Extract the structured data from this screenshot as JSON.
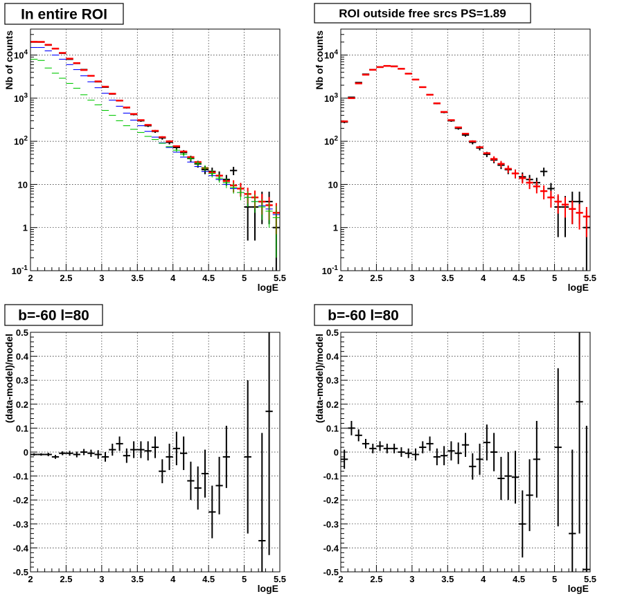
{
  "colors": {
    "data": "#000000",
    "total_model": "#ff0000",
    "blue_model": "#0000ff",
    "green_model": "#00c800"
  },
  "panels": [
    {
      "title": "In entire ROI",
      "xlabel": "logE",
      "ylabel": "Nb of counts"
    },
    {
      "title": "ROI outside free srcs PS=1.89",
      "xlabel": "logE",
      "ylabel": "Nb of counts"
    },
    {
      "title": "b=-60 l=80",
      "xlabel": "logE",
      "ylabel": "(data-model)/model"
    },
    {
      "title": "b=-60 l=80",
      "xlabel": "logE",
      "ylabel": "(data-model)/model"
    }
  ],
  "chart_data": [
    {
      "type": "scatter",
      "title": "In entire ROI",
      "xlabel": "logE",
      "ylabel": "Nb of counts",
      "xlim": [
        2,
        5.5
      ],
      "ylim": [
        0.1,
        40000
      ],
      "yscale": "log",
      "grid": true,
      "x_tick_labels": [
        "2",
        "2.5",
        "3",
        "3.5",
        "4",
        "4.5",
        "5",
        "5.5"
      ],
      "y_tick_labels": [
        "10^-1",
        "1",
        "10",
        "10^2",
        "10^3",
        "10^4"
      ],
      "bin_width": 0.1,
      "x": [
        2.05,
        2.15,
        2.25,
        2.35,
        2.45,
        2.55,
        2.65,
        2.75,
        2.85,
        2.95,
        3.05,
        3.15,
        3.25,
        3.35,
        3.45,
        3.55,
        3.65,
        3.75,
        3.85,
        3.95,
        4.05,
        4.15,
        4.25,
        4.35,
        4.45,
        4.55,
        4.65,
        4.75,
        4.85,
        4.95,
        5.05,
        5.15,
        5.25,
        5.35,
        5.45
      ],
      "series": [
        {
          "role": "data",
          "color": "#000000",
          "values": [
            20000,
            20000,
            17000,
            14000,
            11000,
            8000,
            6400,
            4600,
            3300,
            2400,
            1800,
            1250,
            870,
            600,
            420,
            300,
            230,
            170,
            120,
            95,
            72,
            55,
            40,
            30,
            22,
            20,
            16,
            13,
            21,
            8,
            3,
            3,
            4,
            4,
            1
          ],
          "err_low": [
            141,
            141,
            130,
            118,
            105,
            89,
            80,
            68,
            57,
            49,
            42,
            35,
            29,
            24,
            20,
            17,
            15,
            13,
            11,
            10,
            8.5,
            7.4,
            6.3,
            5.5,
            4.7,
            4.5,
            4,
            3.6,
            4.6,
            2.8,
            2.5,
            2.5,
            2.8,
            2.8,
            0.9
          ],
          "err_high": [
            141,
            141,
            130,
            118,
            105,
            89,
            80,
            68,
            57,
            49,
            42,
            35,
            29,
            24,
            20,
            17,
            15,
            13,
            11,
            10,
            8.5,
            7.4,
            6.3,
            5.5,
            4.7,
            4.5,
            4,
            3.6,
            4.6,
            2.8,
            2.5,
            2.5,
            2.8,
            2.8,
            1.5
          ]
        },
        {
          "role": "total_model",
          "color": "#ff0000",
          "values": [
            20300,
            20200,
            17300,
            14100,
            11200,
            8250,
            6500,
            4500,
            3300,
            2450,
            1850,
            1270,
            880,
            610,
            430,
            310,
            240,
            175,
            125,
            100,
            77,
            58,
            43,
            33,
            24,
            19,
            16,
            12,
            9.5,
            8,
            6,
            5,
            4,
            3.3,
            2.2
          ],
          "err_low": [
            0,
            0,
            0,
            0,
            0,
            0,
            0,
            0,
            0,
            0,
            0,
            0,
            0,
            0,
            0,
            0,
            0,
            0,
            0,
            0,
            0,
            0,
            0,
            0,
            0,
            0,
            0,
            0,
            3,
            2.8,
            2.4,
            2.2,
            2,
            1.8,
            1.5
          ],
          "err_high": [
            0,
            0,
            0,
            0,
            0,
            0,
            0,
            0,
            0,
            0,
            0,
            0,
            0,
            0,
            0,
            0,
            0,
            0,
            0,
            0,
            0,
            0,
            0,
            0,
            0,
            0,
            0,
            0,
            3,
            2.8,
            2.4,
            2.2,
            2,
            1.8,
            1.5
          ]
        },
        {
          "role": "blue_model",
          "color": "#0000ff",
          "values": [
            15000,
            15000,
            12500,
            10000,
            8000,
            6000,
            4600,
            3300,
            2400,
            1750,
            1300,
            900,
            650,
            450,
            310,
            230,
            170,
            125,
            92,
            72,
            56,
            43,
            33,
            26,
            20,
            16,
            13,
            10,
            8,
            6.5,
            5,
            4,
            3.2,
            2.7,
            2
          ],
          "err_low": [
            0,
            0,
            0,
            0,
            0,
            0,
            0,
            0,
            0,
            0,
            0,
            0,
            0,
            0,
            0,
            0,
            0,
            0,
            0,
            0,
            0,
            0,
            0,
            0,
            0,
            0,
            0,
            0,
            0,
            0,
            0,
            0,
            0,
            0,
            0
          ],
          "err_high": [
            0,
            0,
            0,
            0,
            0,
            0,
            0,
            0,
            0,
            0,
            0,
            0,
            0,
            0,
            0,
            0,
            0,
            0,
            0,
            0,
            0,
            0,
            0,
            0,
            0,
            0,
            0,
            0,
            0,
            0,
            0,
            0,
            0,
            0,
            0
          ]
        },
        {
          "role": "green_model",
          "color": "#00c800",
          "values": [
            8000,
            7500,
            5000,
            3800,
            2900,
            2200,
            1700,
            1200,
            900,
            700,
            520,
            400,
            300,
            230,
            190,
            160,
            130,
            110,
            90,
            75,
            62,
            50,
            40,
            31,
            24,
            18,
            14,
            11,
            8.5,
            6.5,
            5,
            4,
            3,
            2.4,
            1.7
          ],
          "err_low": [
            0,
            0,
            0,
            0,
            0,
            0,
            0,
            0,
            0,
            0,
            0,
            0,
            0,
            0,
            0,
            0,
            0,
            0,
            0,
            0,
            6,
            5.5,
            5,
            4.5,
            4,
            3.5,
            3,
            2.8,
            2.4,
            2.2,
            2,
            1.8,
            1.5,
            1.4,
            1.5
          ],
          "err_high": [
            0,
            0,
            0,
            0,
            0,
            0,
            0,
            0,
            0,
            0,
            0,
            0,
            0,
            0,
            0,
            0,
            0,
            0,
            0,
            0,
            6,
            5.5,
            5,
            4.5,
            4,
            3.5,
            3,
            2.8,
            2.4,
            2.2,
            2,
            1.8,
            1.5,
            1.4,
            1.5
          ]
        }
      ]
    },
    {
      "type": "scatter",
      "title": "ROI outside free srcs PS=1.89",
      "xlabel": "logE",
      "ylabel": "Nb of counts",
      "xlim": [
        2,
        5.5
      ],
      "ylim": [
        0.1,
        40000
      ],
      "yscale": "log",
      "grid": true,
      "x_tick_labels": [
        "2",
        "2.5",
        "3",
        "3.5",
        "4",
        "4.5",
        "5",
        "5.5"
      ],
      "y_tick_labels": [
        "10^-1",
        "1",
        "10",
        "10^2",
        "10^3",
        "10^4"
      ],
      "bin_width": 0.1,
      "x": [
        2.05,
        2.15,
        2.25,
        2.35,
        2.45,
        2.55,
        2.65,
        2.75,
        2.85,
        2.95,
        3.05,
        3.15,
        3.25,
        3.35,
        3.45,
        3.55,
        3.65,
        3.75,
        3.85,
        3.95,
        4.05,
        4.15,
        4.25,
        4.35,
        4.45,
        4.55,
        4.65,
        4.75,
        4.85,
        4.95,
        5.05,
        5.15,
        5.25,
        5.35,
        5.45
      ],
      "series": [
        {
          "role": "data",
          "color": "#000000",
          "values": [
            280,
            1050,
            2300,
            3600,
            4600,
            5300,
            5600,
            5500,
            4800,
            3700,
            2700,
            1800,
            1200,
            750,
            470,
            300,
            200,
            140,
            95,
            70,
            50,
            37,
            28,
            22,
            18,
            15,
            13,
            11,
            20,
            8,
            3,
            3,
            4,
            4,
            1
          ],
          "err_low": [
            17,
            32,
            48,
            60,
            68,
            73,
            75,
            74,
            69,
            61,
            52,
            42,
            35,
            27,
            22,
            17,
            14,
            12,
            10,
            8.4,
            7,
            6,
            5.3,
            4.7,
            4.2,
            3.9,
            3.6,
            3.3,
            4.5,
            2.8,
            2.4,
            2.4,
            2.8,
            2.8,
            0.9
          ],
          "err_high": [
            17,
            32,
            48,
            60,
            68,
            73,
            75,
            74,
            69,
            61,
            52,
            42,
            35,
            27,
            22,
            17,
            14,
            12,
            10,
            8.4,
            7,
            6,
            5.3,
            4.7,
            4.2,
            3.9,
            3.6,
            3.3,
            4.5,
            2.8,
            2.4,
            2.4,
            2.8,
            2.8,
            1.5
          ]
        },
        {
          "role": "total_model",
          "color": "#ff0000",
          "values": [
            290,
            1000,
            2200,
            3500,
            4550,
            5250,
            5600,
            5450,
            4800,
            3700,
            2700,
            1800,
            1200,
            760,
            480,
            310,
            210,
            150,
            100,
            73,
            53,
            39,
            30,
            23,
            18,
            14,
            11,
            9,
            7,
            5,
            4,
            3.4,
            2.7,
            2.2,
            1.8
          ],
          "err_low": [
            0,
            0,
            0,
            0,
            0,
            0,
            0,
            0,
            0,
            0,
            0,
            0,
            0,
            0,
            0,
            0,
            0,
            0,
            0,
            0,
            0,
            6,
            5,
            4.5,
            4,
            3.5,
            3.2,
            2.8,
            2.5,
            2.1,
            1.9,
            1.7,
            1.5,
            1.3,
            1.2
          ],
          "err_high": [
            0,
            0,
            0,
            0,
            0,
            0,
            0,
            0,
            0,
            0,
            0,
            0,
            0,
            0,
            0,
            0,
            0,
            0,
            0,
            0,
            0,
            6,
            5,
            4.5,
            4,
            3.5,
            3.2,
            2.8,
            2.5,
            2.1,
            1.9,
            1.7,
            1.5,
            1.3,
            1.2
          ]
        }
      ]
    },
    {
      "type": "scatter",
      "title": "b=-60 l=80",
      "xlabel": "logE",
      "ylabel": "(data-model)/model",
      "xlim": [
        2,
        5.5
      ],
      "ylim": [
        -0.5,
        0.5
      ],
      "yscale": "linear",
      "grid": true,
      "x_tick_labels": [
        "2",
        "2.5",
        "3",
        "3.5",
        "4",
        "4.5",
        "5",
        "5.5"
      ],
      "y_tick_labels": [
        "-0.5",
        "-0.4",
        "-0.3",
        "-0.2",
        "-0.1",
        "0",
        "0.1",
        "0.2",
        "0.3",
        "0.4",
        "0.5"
      ],
      "bin_width": 0.1,
      "x": [
        2.05,
        2.15,
        2.25,
        2.35,
        2.45,
        2.55,
        2.65,
        2.75,
        2.85,
        2.95,
        3.05,
        3.15,
        3.25,
        3.35,
        3.45,
        3.55,
        3.65,
        3.75,
        3.85,
        3.95,
        4.05,
        4.15,
        4.25,
        4.35,
        4.45,
        4.55,
        4.65,
        4.75,
        4.85,
        4.95,
        5.05,
        5.15,
        5.25,
        5.35,
        5.45
      ],
      "series": [
        {
          "role": "data",
          "color": "#000000",
          "values": [
            -0.01,
            -0.01,
            -0.01,
            -0.02,
            -0.005,
            -0.005,
            -0.01,
            0.0,
            -0.005,
            -0.01,
            -0.02,
            0.01,
            0.035,
            -0.015,
            0.01,
            0.01,
            0.005,
            0.02,
            -0.08,
            -0.02,
            0.015,
            -0.005,
            -0.12,
            -0.15,
            -0.09,
            -0.25,
            -0.14,
            -0.02,
            null,
            null,
            -0.02,
            null,
            -0.37,
            0.17,
            null
          ],
          "err": [
            0.005,
            0.005,
            0.007,
            0.008,
            0.008,
            0.01,
            0.012,
            0.013,
            0.015,
            0.018,
            0.02,
            0.025,
            0.03,
            0.03,
            0.035,
            0.035,
            0.04,
            0.045,
            0.05,
            0.055,
            0.07,
            0.07,
            0.08,
            0.09,
            0.1,
            0.11,
            0.12,
            0.13,
            null,
            null,
            0.32,
            null,
            0.45,
            0.6,
            null
          ]
        }
      ]
    },
    {
      "type": "scatter",
      "title": "b=-60 l=80",
      "xlabel": "logE",
      "ylabel": "(data-model)/model",
      "xlim": [
        2,
        5.5
      ],
      "ylim": [
        -0.5,
        0.5
      ],
      "yscale": "linear",
      "grid": true,
      "x_tick_labels": [
        "2",
        "2.5",
        "3",
        "3.5",
        "4",
        "4.5",
        "5",
        "5.5"
      ],
      "y_tick_labels": [
        "-0.5",
        "-0.4",
        "-0.3",
        "-0.2",
        "-0.1",
        "0",
        "0.1",
        "0.2",
        "0.3",
        "0.4",
        "0.5"
      ],
      "bin_width": 0.1,
      "x": [
        2.05,
        2.15,
        2.25,
        2.35,
        2.45,
        2.55,
        2.65,
        2.75,
        2.85,
        2.95,
        3.05,
        3.15,
        3.25,
        3.35,
        3.45,
        3.55,
        3.65,
        3.75,
        3.85,
        3.95,
        4.05,
        4.15,
        4.25,
        4.35,
        4.45,
        4.55,
        4.65,
        4.75,
        4.85,
        4.95,
        5.05,
        5.15,
        5.25,
        5.35,
        5.45
      ],
      "series": [
        {
          "role": "data",
          "color": "#000000",
          "values": [
            -0.03,
            0.1,
            0.07,
            0.035,
            0.015,
            0.025,
            0.015,
            0.015,
            0.0,
            -0.005,
            -0.01,
            0.02,
            0.035,
            -0.02,
            -0.015,
            0.005,
            -0.005,
            0.03,
            -0.06,
            -0.03,
            0.04,
            0.0,
            -0.11,
            -0.1,
            -0.105,
            -0.3,
            -0.18,
            -0.03,
            null,
            null,
            0.02,
            null,
            -0.34,
            0.21,
            -0.49
          ],
          "err": [
            0.04,
            0.03,
            0.025,
            0.02,
            0.02,
            0.02,
            0.02,
            0.02,
            0.02,
            0.02,
            0.025,
            0.025,
            0.03,
            0.035,
            0.04,
            0.04,
            0.045,
            0.05,
            0.055,
            0.065,
            0.075,
            0.08,
            0.09,
            0.1,
            0.11,
            0.14,
            0.15,
            0.16,
            null,
            null,
            0.33,
            null,
            0.35,
            0.55,
            0.6
          ]
        }
      ]
    }
  ]
}
